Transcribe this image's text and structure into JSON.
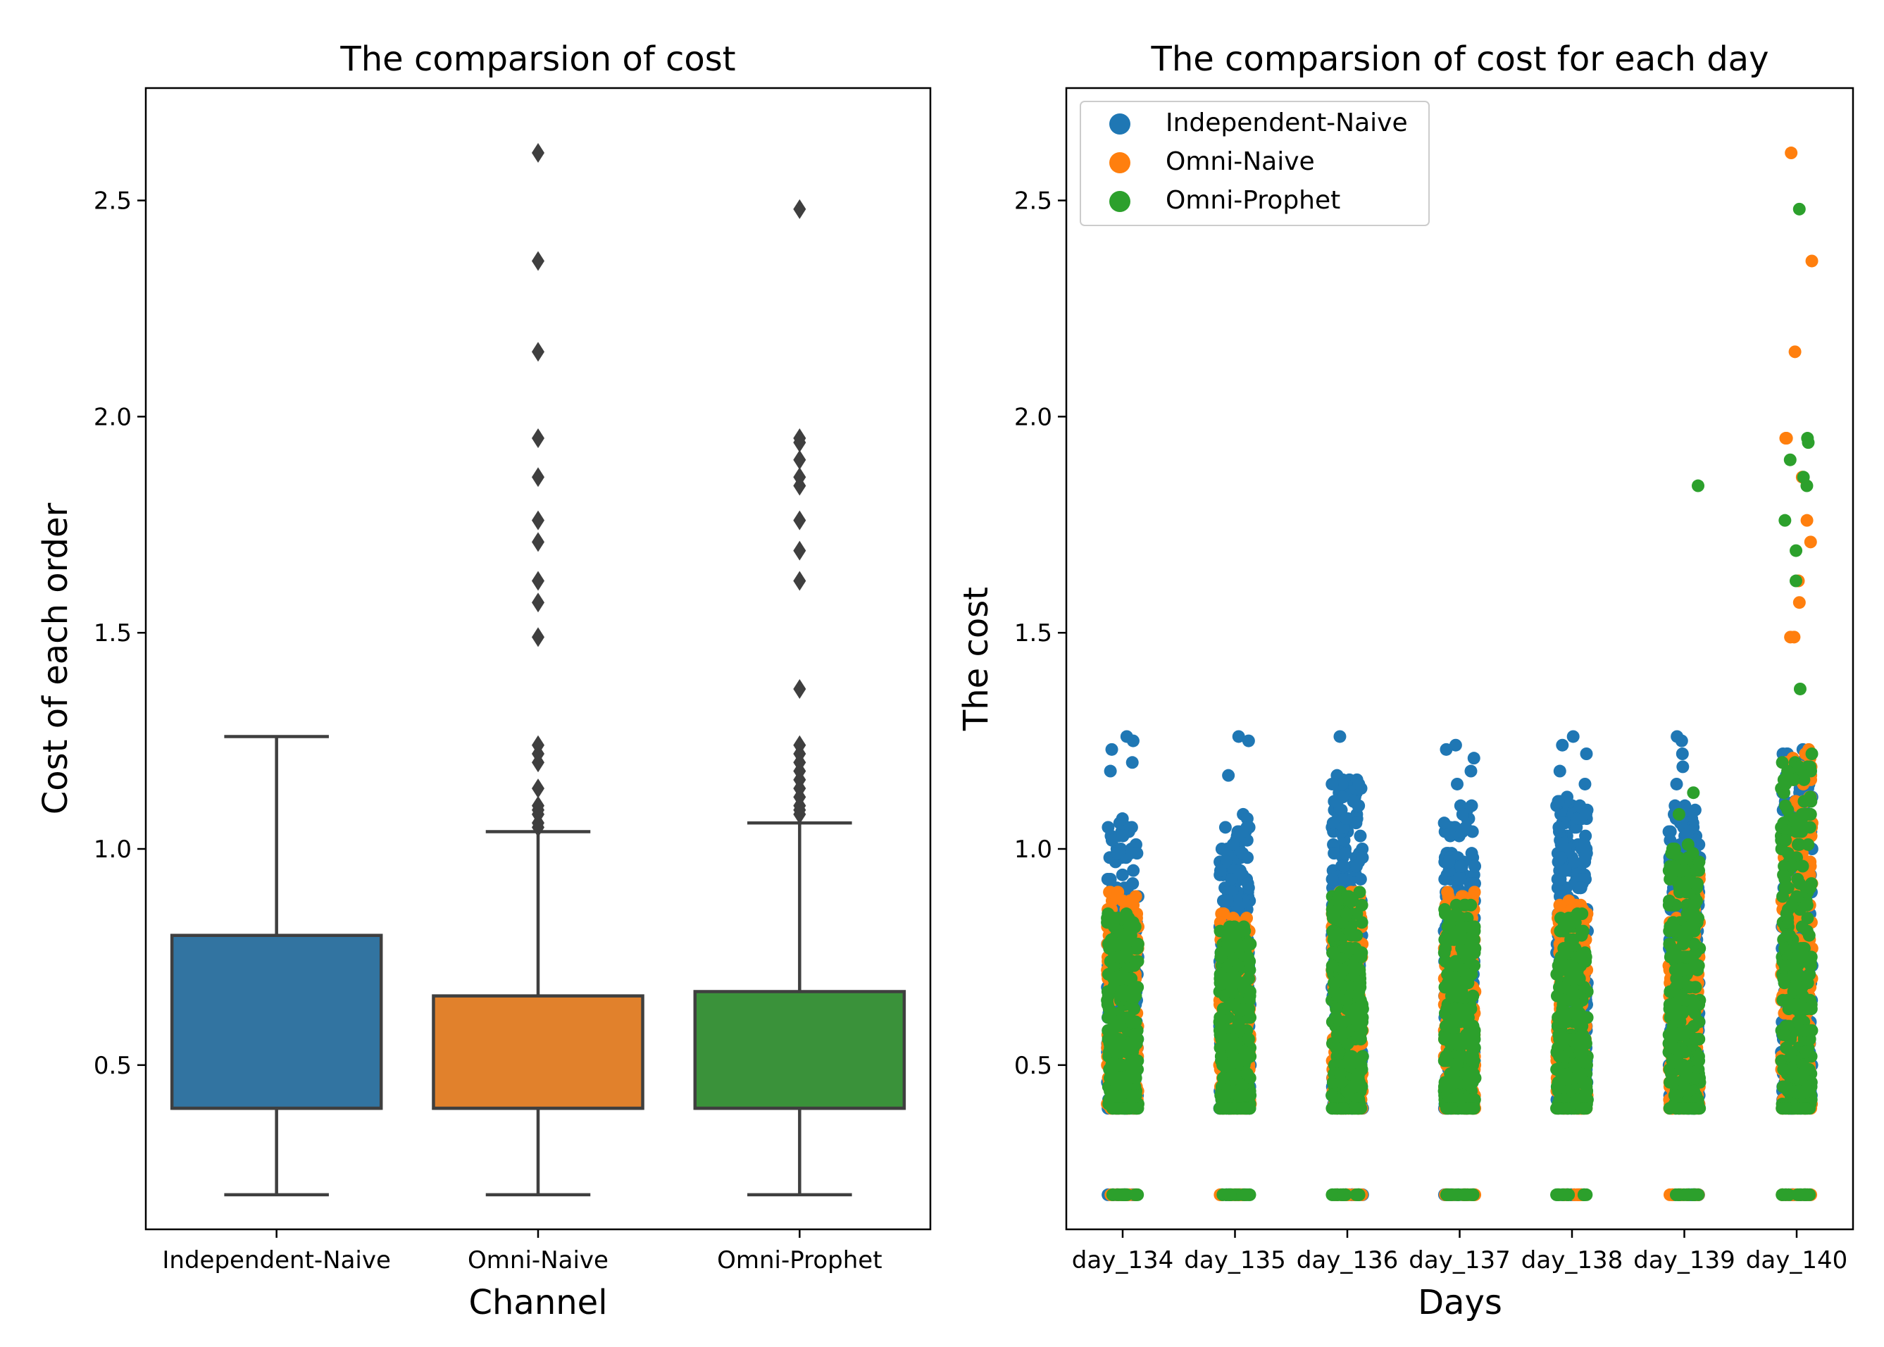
{
  "chart_data": [
    {
      "type": "box",
      "title": "The comparsion of cost",
      "xlabel": "Channel",
      "ylabel": "Cost of each order",
      "ylim": [
        0.12,
        2.76
      ],
      "yticks": [
        0.5,
        1.0,
        1.5,
        2.0,
        2.5
      ],
      "ytick_labels": [
        "0.5",
        "1.0",
        "1.5",
        "2.0",
        "2.5"
      ],
      "categories": [
        "Independent-Naive",
        "Omni-Naive",
        "Omni-Prophet"
      ],
      "series": [
        {
          "name": "Independent-Naive",
          "color": "#3274a1",
          "whisker_low": 0.2,
          "q1": 0.4,
          "median": 0.4,
          "q3": 0.8,
          "whisker_high": 1.26,
          "outliers": []
        },
        {
          "name": "Omni-Naive",
          "color": "#e1812c",
          "whisker_low": 0.2,
          "q1": 0.4,
          "median": 0.4,
          "q3": 0.66,
          "whisker_high": 1.04,
          "outliers": [
            1.05,
            1.06,
            1.08,
            1.09,
            1.1,
            1.14,
            1.2,
            1.22,
            1.24,
            1.49,
            1.57,
            1.62,
            1.71,
            1.76,
            1.86,
            1.95,
            2.15,
            2.36,
            2.61
          ]
        },
        {
          "name": "Omni-Prophet",
          "color": "#3a923a",
          "whisker_low": 0.2,
          "q1": 0.4,
          "median": 0.4,
          "q3": 0.67,
          "whisker_high": 1.06,
          "outliers": [
            1.08,
            1.09,
            1.1,
            1.12,
            1.14,
            1.16,
            1.18,
            1.2,
            1.22,
            1.24,
            1.37,
            1.62,
            1.69,
            1.76,
            1.84,
            1.86,
            1.9,
            1.94,
            1.95,
            2.48
          ]
        }
      ]
    },
    {
      "type": "scatter",
      "title": "The comparsion of cost for each day",
      "xlabel": "Days",
      "ylabel": "The cost",
      "ylim": [
        0.12,
        2.76
      ],
      "yticks": [
        0.5,
        1.0,
        1.5,
        2.0,
        2.5
      ],
      "ytick_labels": [
        "0.5",
        "1.0",
        "1.5",
        "2.0",
        "2.5"
      ],
      "categories": [
        "day_134",
        "day_135",
        "day_136",
        "day_137",
        "day_138",
        "day_139",
        "day_140"
      ],
      "legend": {
        "placement": "top-left",
        "entries": [
          "Independent-Naive",
          "Omni-Naive",
          "Omni-Prophet"
        ]
      },
      "series": [
        {
          "name": "Independent-Naive",
          "color": "#1f77b4",
          "points": [
            {
              "day": "day_134",
              "range": [
                0.4,
                1.07
              ],
              "extra": [
                1.26,
                1.25,
                1.23,
                1.2,
                1.18
              ],
              "floor": 0.2
            },
            {
              "day": "day_135",
              "range": [
                0.4,
                1.08
              ],
              "extra": [
                1.26,
                1.25,
                1.17
              ],
              "floor": 0.2
            },
            {
              "day": "day_136",
              "range": [
                0.4,
                1.17
              ],
              "extra": [
                1.26
              ],
              "floor": 0.2
            },
            {
              "day": "day_137",
              "range": [
                0.4,
                1.1
              ],
              "extra": [
                1.24,
                1.23,
                1.21,
                1.18,
                1.15
              ],
              "floor": 0.2
            },
            {
              "day": "day_138",
              "range": [
                0.4,
                1.12
              ],
              "extra": [
                1.26,
                1.24,
                1.22,
                1.18,
                1.15
              ],
              "floor": 0.2
            },
            {
              "day": "day_139",
              "range": [
                0.4,
                1.1
              ],
              "extra": [
                1.26,
                1.25,
                1.22,
                1.19,
                1.15
              ],
              "floor": 0.2
            },
            {
              "day": "day_140",
              "range": [
                0.4,
                1.22
              ],
              "extra": [
                1.23
              ],
              "floor": 0.2
            }
          ]
        },
        {
          "name": "Omni-Naive",
          "color": "#ff7f0e",
          "points": [
            {
              "day": "day_134",
              "range": [
                0.4,
                0.9
              ],
              "extra": [],
              "floor": 0.2
            },
            {
              "day": "day_135",
              "range": [
                0.4,
                0.85
              ],
              "extra": [],
              "floor": 0.2
            },
            {
              "day": "day_136",
              "range": [
                0.4,
                0.9
              ],
              "extra": [],
              "floor": 0.2
            },
            {
              "day": "day_137",
              "range": [
                0.4,
                0.9
              ],
              "extra": [],
              "floor": 0.2
            },
            {
              "day": "day_138",
              "range": [
                0.4,
                0.88
              ],
              "extra": [],
              "floor": 0.2
            },
            {
              "day": "day_139",
              "range": [
                0.4,
                0.95
              ],
              "extra": [],
              "floor": 0.2
            },
            {
              "day": "day_140",
              "range": [
                0.4,
                1.23
              ],
              "extra": [
                2.61,
                2.36,
                2.15,
                1.95,
                1.95,
                1.86,
                1.76,
                1.71,
                1.62,
                1.57,
                1.49,
                1.49
              ],
              "floor": 0.2
            }
          ]
        },
        {
          "name": "Omni-Prophet",
          "color": "#2ca02c",
          "points": [
            {
              "day": "day_134",
              "range": [
                0.4,
                0.85
              ],
              "extra": [],
              "floor": 0.2
            },
            {
              "day": "day_135",
              "range": [
                0.4,
                0.82
              ],
              "extra": [],
              "floor": 0.2
            },
            {
              "day": "day_136",
              "range": [
                0.4,
                0.9
              ],
              "extra": [],
              "floor": 0.2
            },
            {
              "day": "day_137",
              "range": [
                0.4,
                0.88
              ],
              "extra": [],
              "floor": 0.2
            },
            {
              "day": "day_138",
              "range": [
                0.4,
                0.85
              ],
              "extra": [],
              "floor": 0.2
            },
            {
              "day": "day_139",
              "range": [
                0.4,
                1.02
              ],
              "extra": [
                1.84,
                1.13,
                1.08
              ],
              "floor": 0.2
            },
            {
              "day": "day_140",
              "range": [
                0.4,
                1.22
              ],
              "extra": [
                2.48,
                1.95,
                1.94,
                1.9,
                1.86,
                1.84,
                1.76,
                1.69,
                1.62,
                1.37
              ],
              "floor": 0.2
            }
          ]
        }
      ]
    }
  ]
}
